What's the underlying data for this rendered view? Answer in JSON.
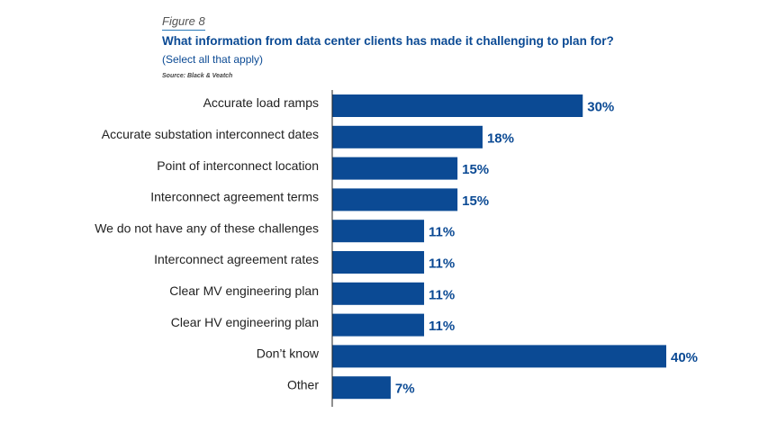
{
  "figure_label": "Figure 8",
  "source": "Source: Black & Veatch",
  "colors": {
    "bar": "#0b4a94",
    "axis": "#222222",
    "value_text": "#0b4a94"
  },
  "chart_data": {
    "type": "bar",
    "orientation": "horizontal",
    "title": "What information from data center clients has made it challenging to plan for?",
    "subtitle": "(Select all that apply)",
    "xlabel": "",
    "ylabel": "",
    "xlim": [
      0,
      40
    ],
    "grid": false,
    "value_suffix": "%",
    "categories": [
      "Accurate load ramps",
      "Accurate substation interconnect dates",
      "Point of interconnect location",
      "Interconnect agreement terms",
      "We do not have any of these challenges",
      "Interconnect agreement rates",
      "Clear MV engineering plan",
      "Clear HV engineering plan",
      "Don’t know",
      "Other"
    ],
    "values": [
      30,
      18,
      15,
      15,
      11,
      11,
      11,
      11,
      40,
      7
    ]
  }
}
